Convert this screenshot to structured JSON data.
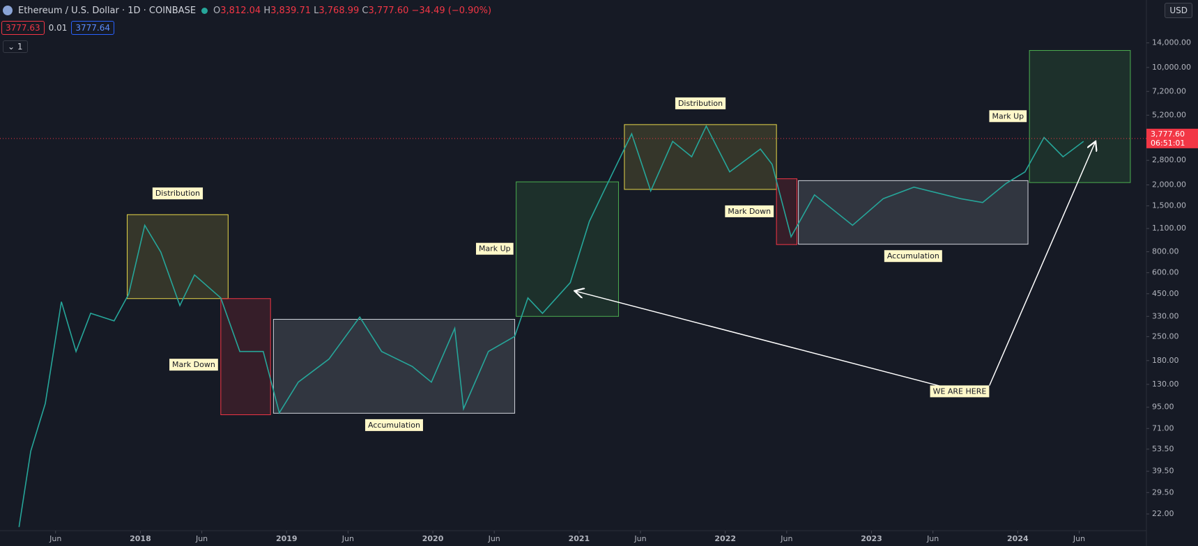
{
  "header": {
    "symbol": "Ethereum / U.S. Dollar · 1D · COINBASE",
    "ohlc": [
      {
        "key": "O",
        "value": "3,812.04"
      },
      {
        "key": "H",
        "value": "3,839.71"
      },
      {
        "key": "L",
        "value": "3,768.99"
      },
      {
        "key": "C",
        "value": "3,777.60"
      }
    ],
    "change": "−34.49 (−0.90%)",
    "sell": "3777.63",
    "spread": "0.01",
    "buy": "3777.64",
    "currency": "USD",
    "indicator_count": "1"
  },
  "chart_data": {
    "type": "line",
    "color": "#26a69a",
    "log_scale": true,
    "x": [
      2017.17,
      2017.25,
      2017.35,
      2017.46,
      2017.56,
      2017.66,
      2017.82,
      2017.92,
      2018.03,
      2018.14,
      2018.27,
      2018.37,
      2018.55,
      2018.68,
      2018.84,
      2018.95,
      2019.08,
      2019.29,
      2019.5,
      2019.65,
      2019.86,
      2019.99,
      2020.15,
      2020.21,
      2020.38,
      2020.56,
      2020.65,
      2020.75,
      2020.94,
      2021.07,
      2021.17,
      2021.36,
      2021.49,
      2021.64,
      2021.77,
      2021.87,
      2022.03,
      2022.24,
      2022.32,
      2022.45,
      2022.61,
      2022.87,
      2023.08,
      2023.29,
      2023.61,
      2023.76,
      2023.92,
      2024.05,
      2024.18,
      2024.31,
      2024.45
    ],
    "values": [
      18.4,
      52,
      100,
      403,
      204,
      344,
      310,
      447,
      1150,
      795,
      383,
      582,
      425,
      204,
      204,
      88,
      134,
      184,
      327,
      204,
      166,
      134,
      280,
      93,
      204,
      251,
      425,
      344,
      524,
      1210,
      1840,
      4030,
      1840,
      3630,
      2940,
      4480,
      2390,
      3270,
      2650,
      982,
      1745,
      1150,
      1655,
      1940,
      1655,
      1570,
      2040,
      2390,
      3830,
      2940,
      3630
    ],
    "xlim": [
      2017.04,
      2024.88
    ],
    "ylim": [
      17.5,
      25200
    ],
    "xticks": [
      {
        "value": 2017.42,
        "label": "Jun"
      },
      2018,
      {
        "value": 2018.42,
        "label": "Jun"
      },
      2019,
      {
        "value": 2019.42,
        "label": "Jun"
      },
      2020,
      {
        "value": 2020.42,
        "label": "Jun"
      },
      2021,
      {
        "value": 2021.42,
        "label": "Jun"
      },
      2022,
      {
        "value": 2022.42,
        "label": "Jun"
      },
      2023,
      {
        "value": 2023.42,
        "label": "Jun"
      },
      2024,
      {
        "value": 2024.42,
        "label": "Jun"
      }
    ],
    "yticks": [
      {
        "value": 14000,
        "label": "14,000.00"
      },
      {
        "value": 10000,
        "label": "10,000.00"
      },
      {
        "value": 7200,
        "label": "7,200.00"
      },
      {
        "value": 5200,
        "label": "5,200.00"
      },
      {
        "value": 2800,
        "label": "2,800.00"
      },
      {
        "value": 2000,
        "label": "2,000.00"
      },
      {
        "value": 1500,
        "label": "1,500.00"
      },
      {
        "value": 1100,
        "label": "1,100.00"
      },
      {
        "value": 800,
        "label": "800.00"
      },
      {
        "value": 600,
        "label": "600.00"
      },
      {
        "value": 450,
        "label": "450.00"
      },
      {
        "value": 330,
        "label": "330.00"
      },
      {
        "value": 250,
        "label": "250.00"
      },
      {
        "value": 180,
        "label": "180.00"
      },
      {
        "value": 130,
        "label": "130.00"
      },
      {
        "value": 95,
        "label": "95.00"
      },
      {
        "value": 71,
        "label": "71.00"
      },
      {
        "value": 53.5,
        "label": "53.50"
      },
      {
        "value": 39.5,
        "label": "39.50"
      },
      {
        "value": 29.5,
        "label": "29.50"
      },
      {
        "value": 22,
        "label": "22.00"
      }
    ],
    "last_price": {
      "value": 3777.6,
      "label": "3,777.60"
    },
    "countdown": "06:51:01",
    "zones": [
      {
        "label": "Distribution",
        "x": [
          2017.91,
          2018.6
        ],
        "y": [
          421,
          1330
        ],
        "color": "#e8d84a"
      },
      {
        "label": "Mark Down",
        "x": [
          2018.55,
          2018.89
        ],
        "y": [
          85.7,
          421
        ],
        "color": "#f23645"
      },
      {
        "label": "Accumulation",
        "x": [
          2018.91,
          2020.56
        ],
        "y": [
          87.5,
          317
        ],
        "color": "#d1d4dc"
      },
      {
        "label": "Mark Up",
        "x": [
          2020.57,
          2021.27
        ],
        "y": [
          330,
          2085
        ],
        "color": "#4caf50"
      },
      {
        "label": "Distribution",
        "x": [
          2021.31,
          2022.35
        ],
        "y": [
          1880,
          4570
        ],
        "color": "#e8d84a"
      },
      {
        "label": "Mark Down",
        "x": [
          2022.35,
          2022.49
        ],
        "y": [
          883,
          2175
        ],
        "color": "#f23645"
      },
      {
        "label": "Accumulation",
        "x": [
          2022.5,
          2024.07
        ],
        "y": [
          887,
          2120
        ],
        "color": "#d1d4dc"
      },
      {
        "label": "Mark Up",
        "x": [
          2024.08,
          2024.77
        ],
        "y": [
          2065,
          12620
        ],
        "color": "#4caf50"
      }
    ],
    "annotation": "WE ARE HERE"
  }
}
